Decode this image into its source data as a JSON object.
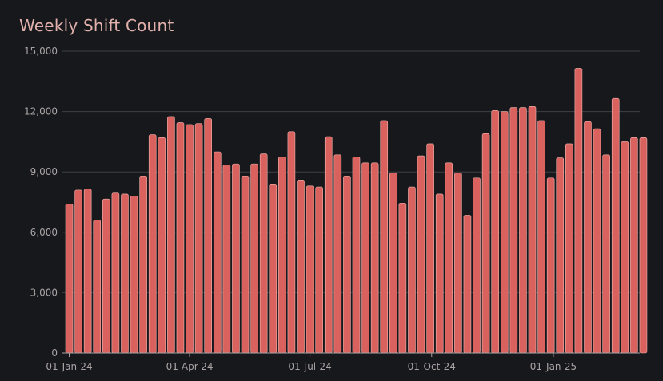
{
  "chart_data": {
    "type": "bar",
    "title": "Weekly Shift Count",
    "xlabel": "",
    "ylabel": "",
    "ylim": [
      0,
      15000
    ],
    "grid": true,
    "y_ticks": [
      0,
      3000,
      6000,
      9000,
      12000,
      15000
    ],
    "y_tick_labels": [
      "0",
      "3,000",
      "6,000",
      "9,000",
      "12,000",
      "15,000"
    ],
    "x_ticks": [
      {
        "date": "2024-01-01",
        "label": "01-Jan-24"
      },
      {
        "date": "2024-04-01",
        "label": "01-Apr-24"
      },
      {
        "date": "2024-07-01",
        "label": "01-Jul-24"
      },
      {
        "date": "2024-10-01",
        "label": "01-Oct-24"
      },
      {
        "date": "2025-01-01",
        "label": "01-Jan-25"
      }
    ],
    "x": [
      "2024-01-01",
      "2024-01-08",
      "2024-01-15",
      "2024-01-22",
      "2024-01-29",
      "2024-02-05",
      "2024-02-12",
      "2024-02-19",
      "2024-02-26",
      "2024-03-04",
      "2024-03-11",
      "2024-03-18",
      "2024-03-25",
      "2024-04-01",
      "2024-04-08",
      "2024-04-15",
      "2024-04-22",
      "2024-04-29",
      "2024-05-06",
      "2024-05-13",
      "2024-05-20",
      "2024-05-27",
      "2024-06-03",
      "2024-06-10",
      "2024-06-17",
      "2024-06-24",
      "2024-07-01",
      "2024-07-08",
      "2024-07-15",
      "2024-07-22",
      "2024-07-29",
      "2024-08-05",
      "2024-08-12",
      "2024-08-19",
      "2024-08-26",
      "2024-09-02",
      "2024-09-09",
      "2024-09-16",
      "2024-09-23",
      "2024-09-30",
      "2024-10-07",
      "2024-10-14",
      "2024-10-21",
      "2024-10-28",
      "2024-11-04",
      "2024-11-11",
      "2024-11-18",
      "2024-11-25",
      "2024-12-02",
      "2024-12-09",
      "2024-12-16",
      "2024-12-23",
      "2024-12-30",
      "2025-01-06",
      "2025-01-13",
      "2025-01-20",
      "2025-01-27",
      "2025-02-03",
      "2025-02-10",
      "2025-02-17",
      "2025-02-24",
      "2025-03-03",
      "2025-03-10"
    ],
    "values": [
      7400,
      8100,
      8150,
      6600,
      7650,
      7950,
      7900,
      7800,
      8800,
      10850,
      10700,
      11750,
      11450,
      11350,
      11400,
      11650,
      10000,
      9350,
      9400,
      8800,
      9400,
      9900,
      8400,
      9750,
      11000,
      8600,
      8300,
      8250,
      10750,
      9850,
      8800,
      9750,
      9450,
      9450,
      11550,
      8950,
      7450,
      8250,
      9800,
      10400,
      7900,
      9450,
      8950,
      6850,
      8700,
      10900,
      12050,
      12000,
      12200,
      12200,
      12250,
      11550,
      8700,
      9700,
      10400,
      14150,
      11500,
      11150,
      9850,
      12650,
      10500,
      10700,
      10700
    ]
  }
}
